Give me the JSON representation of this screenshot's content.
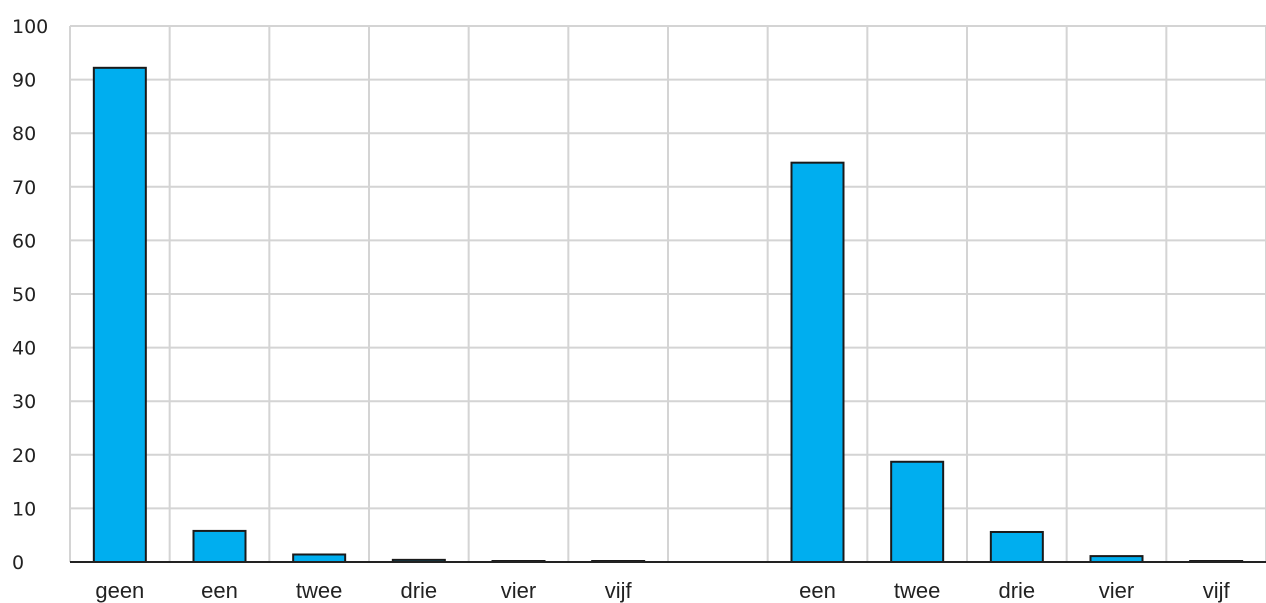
{
  "chart_data": {
    "type": "bar",
    "title": "",
    "xlabel": "",
    "ylabel": "",
    "ylim": [
      0,
      100
    ],
    "yticks": [
      0,
      10,
      20,
      30,
      40,
      50,
      60,
      70,
      80,
      90,
      100
    ],
    "grid": true,
    "legend": "none",
    "bar_color": "#00aeef",
    "categories": [
      "geen",
      "een",
      "twee",
      "drie",
      "vier",
      "vijf",
      "",
      "een",
      "twee",
      "drie",
      "vier",
      "vijf"
    ],
    "values": [
      92.2,
      5.8,
      1.4,
      0.4,
      0.15,
      0.05,
      null,
      74.5,
      18.7,
      5.6,
      1.1,
      0.1
    ]
  }
}
